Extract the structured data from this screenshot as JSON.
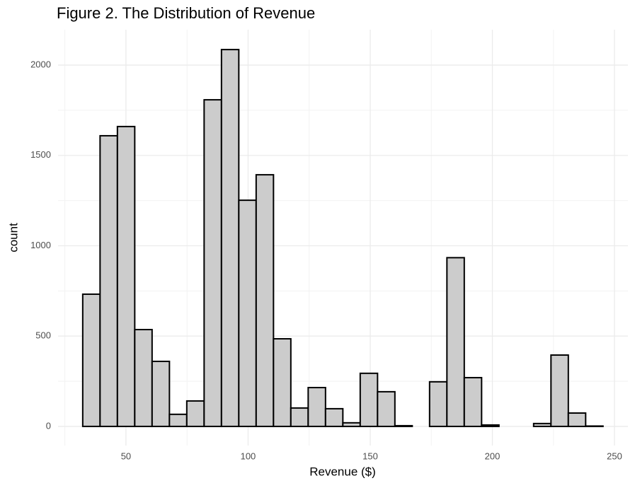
{
  "chart_data": {
    "type": "histogram",
    "title": "Figure 2. The Distribution of Revenue",
    "x_label": "Revenue ($)",
    "y_label": "count",
    "bins": [
      32.3,
      39.4,
      46.5,
      53.6,
      60.7,
      67.8,
      74.9,
      82,
      89.1,
      96.2,
      103.3,
      110.4,
      117.5,
      124.6,
      131.7,
      138.8,
      145.9,
      153,
      160.1,
      167.2,
      174.3,
      181.4,
      188.5,
      195.6,
      202.7,
      209.8,
      216.9,
      224,
      231.1,
      238.2,
      245.3
    ],
    "counts": [
      732,
      1609,
      1660,
      536,
      360,
      67,
      141,
      1808,
      2086,
      1252,
      1393,
      485,
      102,
      215,
      98,
      20,
      294,
      192,
      4,
      0,
      247,
      934,
      270,
      8,
      0,
      0,
      16,
      395,
      74,
      2
    ],
    "color": "#cccccc",
    "edge_color": "#000000",
    "xlim": [
      22.2,
      255.5
    ],
    "xticks": [
      50,
      100,
      150,
      200,
      250
    ],
    "x_minor_ticks": [
      25,
      75,
      125,
      175,
      225
    ],
    "ylim": [
      -106,
      2196
    ],
    "yticks": [
      0,
      500,
      1000,
      1500,
      2000
    ],
    "y_minor_ticks": [
      250,
      750,
      1250,
      1750
    ],
    "grid": true
  }
}
